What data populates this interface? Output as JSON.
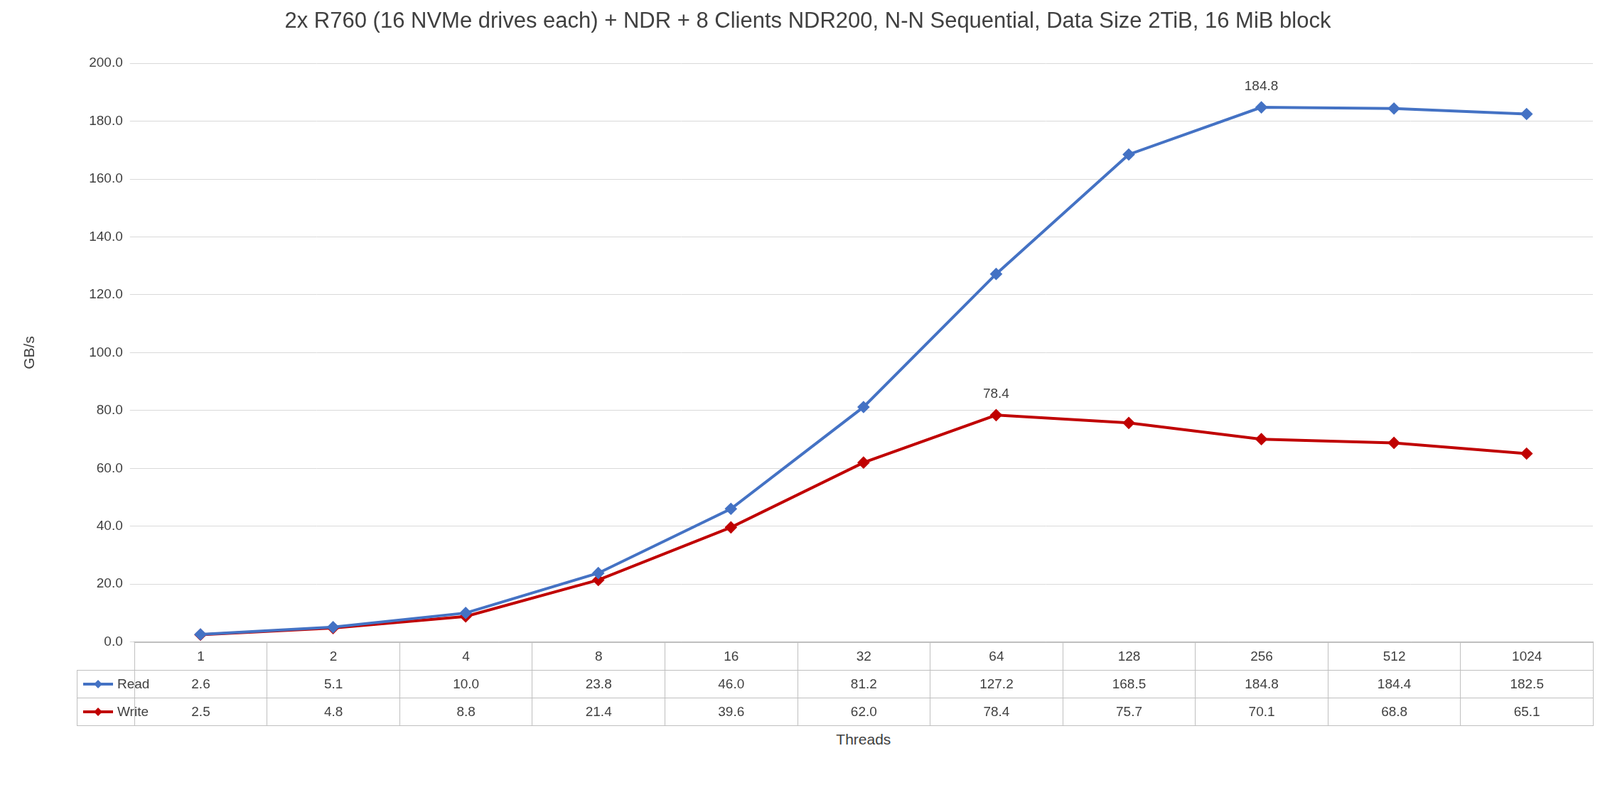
{
  "chart_data": {
    "type": "line",
    "title": "2x R760 (16 NVMe drives each) + NDR + 8 Clients NDR200, N-N Sequential, Data Size 2TiB, 16 MiB block",
    "x_label": "Threads",
    "y_label": "GB/s",
    "categories": [
      "1",
      "2",
      "4",
      "8",
      "16",
      "32",
      "64",
      "128",
      "256",
      "512",
      "1024"
    ],
    "series": [
      {
        "name": "Read",
        "color": "#4472c4",
        "marker": "diamond",
        "values": [
          2.6,
          5.1,
          10.0,
          23.8,
          46.0,
          81.2,
          127.2,
          168.5,
          184.8,
          184.4,
          182.5
        ],
        "value_labels": [
          "2.6",
          "5.1",
          "10.0",
          "23.8",
          "46.0",
          "81.2",
          "127.2",
          "168.5",
          "184.8",
          "184.4",
          "182.5"
        ]
      },
      {
        "name": "Write",
        "color": "#c00000",
        "marker": "diamond",
        "values": [
          2.5,
          4.8,
          8.8,
          21.4,
          39.6,
          62.0,
          78.4,
          75.7,
          70.1,
          68.8,
          65.1
        ],
        "value_labels": [
          "2.5",
          "4.8",
          "8.8",
          "21.4",
          "39.6",
          "62.0",
          "78.4",
          "75.7",
          "70.1",
          "68.8",
          "65.1"
        ]
      }
    ],
    "ylim": [
      0,
      200
    ],
    "yticks": [
      {
        "value": 0,
        "label": "0.0"
      },
      {
        "value": 20,
        "label": "20.0"
      },
      {
        "value": 40,
        "label": "40.0"
      },
      {
        "value": 60,
        "label": "60.0"
      },
      {
        "value": 80,
        "label": "80.0"
      },
      {
        "value": 100,
        "label": "100.0"
      },
      {
        "value": 120,
        "label": "120.0"
      },
      {
        "value": 140,
        "label": "140.0"
      },
      {
        "value": 160,
        "label": "160.0"
      },
      {
        "value": 180,
        "label": "180.0"
      },
      {
        "value": 200,
        "label": "200.0"
      }
    ],
    "grid": true,
    "annotations": [
      {
        "text": "184.8",
        "series": "Read",
        "category": "256"
      },
      {
        "text": "78.4",
        "series": "Write",
        "category": "64"
      }
    ]
  }
}
